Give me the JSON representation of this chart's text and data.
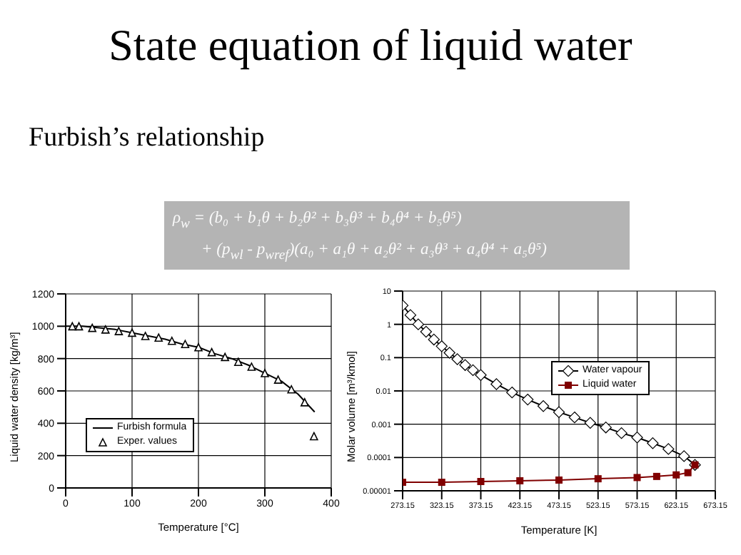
{
  "chart_data": [
    {
      "type": "line",
      "title": "State equation of liquid water",
      "subtitle": "Furbish’s relationship",
      "annotations": [
        "ρ$_{w}$ = (b₀ + b₁θ + b₂θ² + b₃θ³ + b₄θ⁴ + b₅θ⁵)",
        "+ (p$_{wl}$ - p$_{wref}$)(a₀ + a₁θ + a₂θ² + a₃θ³ + a₄θ⁴ + a₅θ⁵)"
      ],
      "xlabel": "Temperature [°C]",
      "ylabel": "Liquid water density [kg/m³]",
      "xlim": [
        0,
        400
      ],
      "xticks": [
        0,
        100,
        200,
        300,
        400
      ],
      "ylim": [
        0,
        1200
      ],
      "yticks": [
        0,
        200,
        400,
        600,
        800,
        1000,
        1200
      ],
      "grid": true,
      "legend": "left",
      "series": [
        {
          "name": "Furbish formula",
          "marker": "none",
          "color": "#000000",
          "x": [
            0,
            25,
            50,
            75,
            100,
            125,
            150,
            175,
            200,
            225,
            250,
            275,
            300,
            325,
            350,
            375
          ],
          "values": [
            1000,
            1000,
            990,
            980,
            960,
            940,
            920,
            890,
            870,
            830,
            800,
            760,
            710,
            660,
            580,
            470
          ]
        },
        {
          "name": "Exper. values",
          "type": "scatter",
          "marker": "triangle",
          "color": "#000000",
          "x": [
            10,
            20,
            40,
            60,
            80,
            100,
            120,
            140,
            160,
            180,
            200,
            220,
            240,
            260,
            280,
            300,
            320,
            340,
            360,
            374
          ],
          "values": [
            1000,
            1000,
            990,
            980,
            970,
            960,
            940,
            930,
            910,
            890,
            870,
            840,
            810,
            780,
            750,
            710,
            670,
            610,
            530,
            320
          ]
        }
      ]
    },
    {
      "type": "line",
      "xlabel": "Temperature [K]",
      "ylabel": "Molar volume [m³/kmol]",
      "log": "y",
      "xlim": [
        273.15,
        673.15
      ],
      "xticks": [
        273.15,
        323.15,
        373.15,
        423.15,
        473.15,
        523.15,
        573.15,
        623.15,
        673.15
      ],
      "ylim": [
        1e-05,
        10
      ],
      "yticks": [
        {
          "value": 1e-05,
          "label": "0.00001"
        },
        0.0001,
        0.001,
        0.01,
        0.1,
        1,
        10
      ],
      "grid": true,
      "legend": "right",
      "series": [
        {
          "name": "Water vapour",
          "marker": "diamond",
          "color": "#000000",
          "x": [
            273.15,
            283.15,
            293.15,
            303.15,
            313.15,
            323.15,
            333.15,
            343.15,
            353.15,
            363.15,
            373.15,
            393.15,
            413.15,
            433.15,
            453.15,
            473.15,
            493.15,
            513.15,
            533.15,
            553.15,
            573.15,
            593.15,
            613.15,
            633.15,
            647.15
          ],
          "values": [
            3.7,
            1.9,
            1,
            0.6,
            0.35,
            0.22,
            0.14,
            0.09,
            0.06,
            0.042,
            0.03,
            0.016,
            0.009,
            0.0055,
            0.0035,
            0.0023,
            0.0016,
            0.0011,
            0.0008,
            0.00054,
            0.0004,
            0.00027,
            0.00018,
            0.00011,
            6e-05
          ]
        },
        {
          "name": "Liquid water",
          "marker": "square",
          "color": "#800000",
          "x": [
            273.15,
            323.15,
            373.15,
            423.15,
            473.15,
            523.15,
            573.15,
            598.15,
            623.15,
            638.15,
            647.15
          ],
          "values": [
            1.8e-05,
            1.8e-05,
            1.9e-05,
            2e-05,
            2.1e-05,
            2.3e-05,
            2.5e-05,
            2.7e-05,
            3e-05,
            3.5e-05,
            6e-05
          ]
        }
      ]
    }
  ]
}
